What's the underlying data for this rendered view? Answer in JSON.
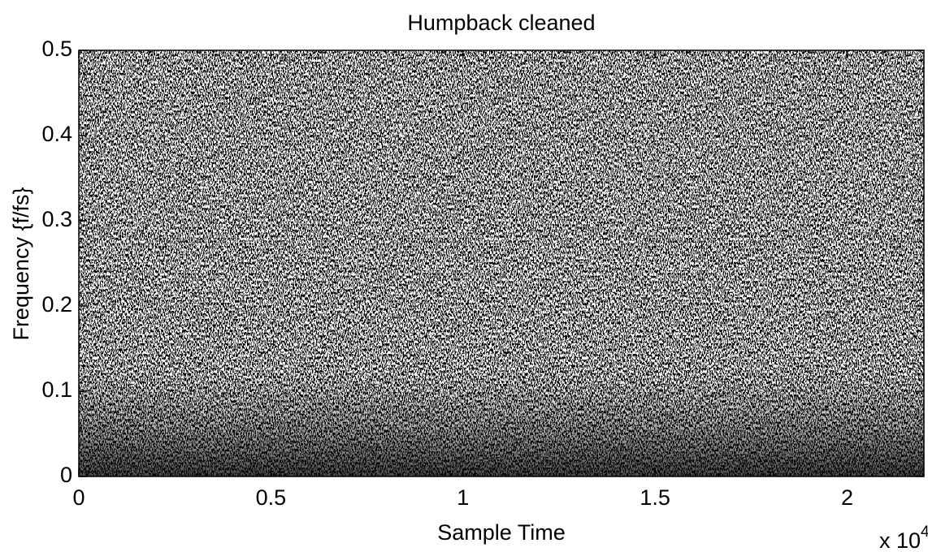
{
  "chart_data": {
    "type": "spectrogram",
    "title": "Humpback cleaned",
    "x_label": "Sample Time",
    "y_label": "Frequency {f/fs}",
    "x_scale_label": {
      "base": "x 10",
      "exponent": "4"
    },
    "xlim": [
      0,
      2.2
    ],
    "xticks": [
      0,
      0.5,
      1,
      1.5,
      2
    ],
    "ylim": [
      0,
      0.5
    ],
    "yticks": [
      0,
      0.1,
      0.2,
      0.3,
      0.4,
      0.5
    ],
    "grid": false
  }
}
